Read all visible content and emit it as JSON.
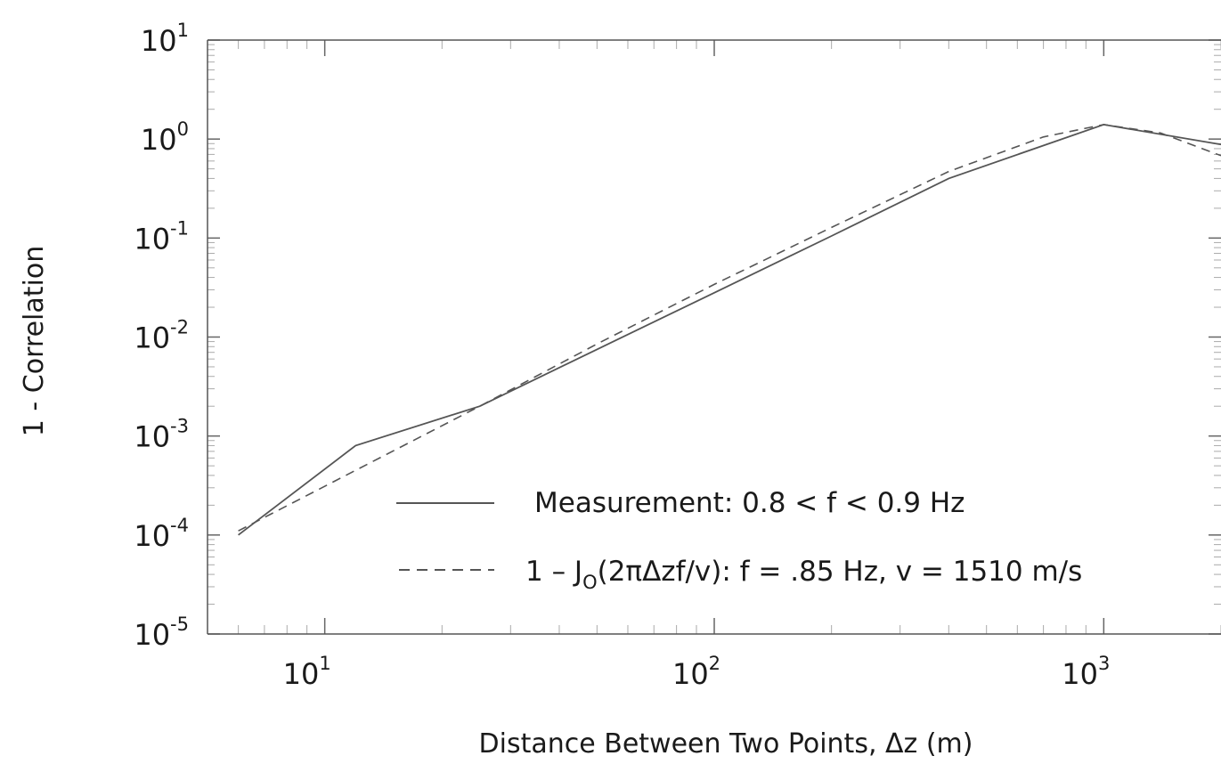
{
  "chart_data": {
    "type": "line",
    "xlabel": "Distance Between Two Points, Δz (m)",
    "ylabel": "1 - Correlation",
    "xscale": "log",
    "yscale": "log",
    "xlim": [
      5,
      2000
    ],
    "ylim": [
      1e-05,
      10
    ],
    "x_ticks": [
      {
        "base": "10",
        "exp": "1",
        "value": 10
      },
      {
        "base": "10",
        "exp": "2",
        "value": 100
      },
      {
        "base": "10",
        "exp": "3",
        "value": 1000
      }
    ],
    "y_ticks": [
      {
        "base": "10",
        "exp": "1",
        "value": 10
      },
      {
        "base": "10",
        "exp": "0",
        "value": 1
      },
      {
        "base": "10",
        "exp": "-1",
        "value": 0.1
      },
      {
        "base": "10",
        "exp": "-2",
        "value": 0.01
      },
      {
        "base": "10",
        "exp": "-3",
        "value": 0.001
      },
      {
        "base": "10",
        "exp": "-4",
        "value": 0.0001
      },
      {
        "base": "10",
        "exp": "-5",
        "value": 1e-05
      }
    ],
    "grid": false,
    "legend_position": "bottom-right",
    "series": [
      {
        "legend_main": "Measurement:  0.8 <  f < 0.9 Hz",
        "style": "solid",
        "color": "#555555",
        "x": [
          6,
          12,
          25,
          50,
          100,
          200,
          400,
          1000,
          2000
        ],
        "y": [
          0.0001,
          0.0008,
          0.002,
          0.0075,
          0.028,
          0.105,
          0.4,
          1.4,
          0.88
        ]
      },
      {
        "legend_pre": "1 – J",
        "legend_sub": "O",
        "legend_post": "(2πΔzf/v):  f = .85 Hz, v = 1510 m/s",
        "style": "dashed",
        "color": "#555555",
        "x": [
          6,
          12,
          25,
          50,
          100,
          200,
          400,
          700,
          1000,
          1400,
          2000
        ],
        "y": [
          0.00011,
          0.00045,
          0.002,
          0.0085,
          0.034,
          0.128,
          0.47,
          1.05,
          1.4,
          1.15,
          0.68
        ]
      }
    ]
  }
}
